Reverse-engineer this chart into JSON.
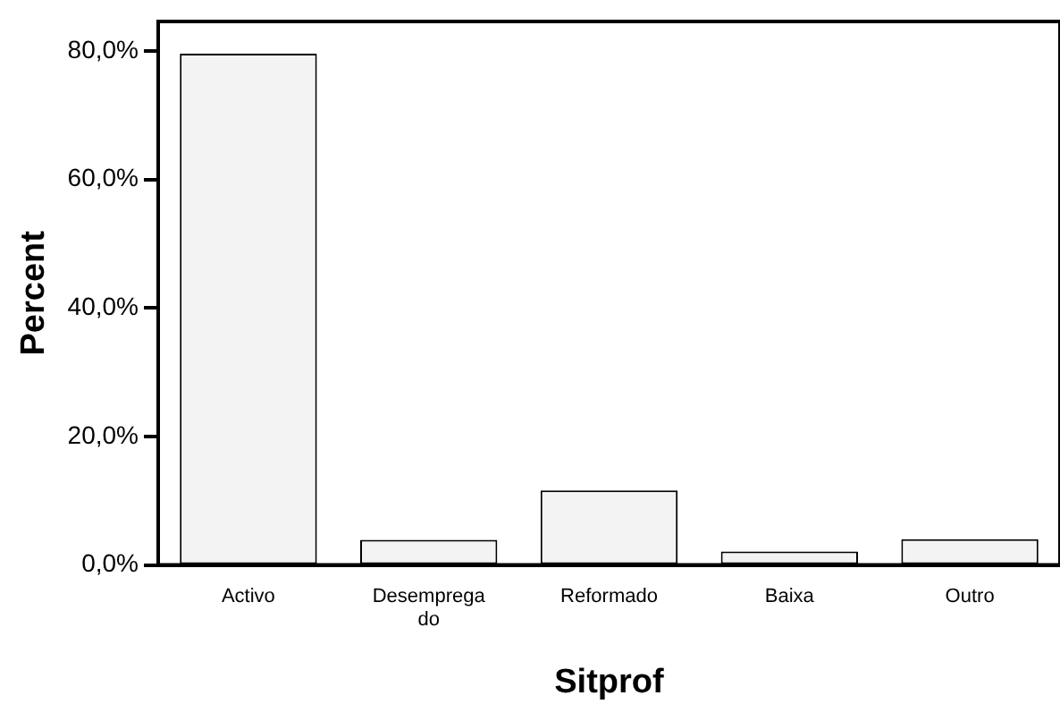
{
  "chart_data": {
    "type": "bar",
    "xlabel": "Sitprof",
    "ylabel": "Percent",
    "categories": [
      "Activo",
      "Desempregado",
      "Reformado",
      "Baixa",
      "Outro"
    ],
    "values": [
      79.6,
      3.9,
      11.6,
      2.1,
      4.0
    ],
    "color": "#f3f3f3",
    "ylim": [
      0,
      84.6
    ],
    "yticks": [
      {
        "value": 0,
        "label": "0,0%"
      },
      {
        "value": 20,
        "label": "20,0%"
      },
      {
        "value": 40,
        "label": "40,0%"
      },
      {
        "value": 60,
        "label": "60,0%"
      },
      {
        "value": 80,
        "label": "80,0%"
      }
    ],
    "grid": false,
    "legend": false
  }
}
